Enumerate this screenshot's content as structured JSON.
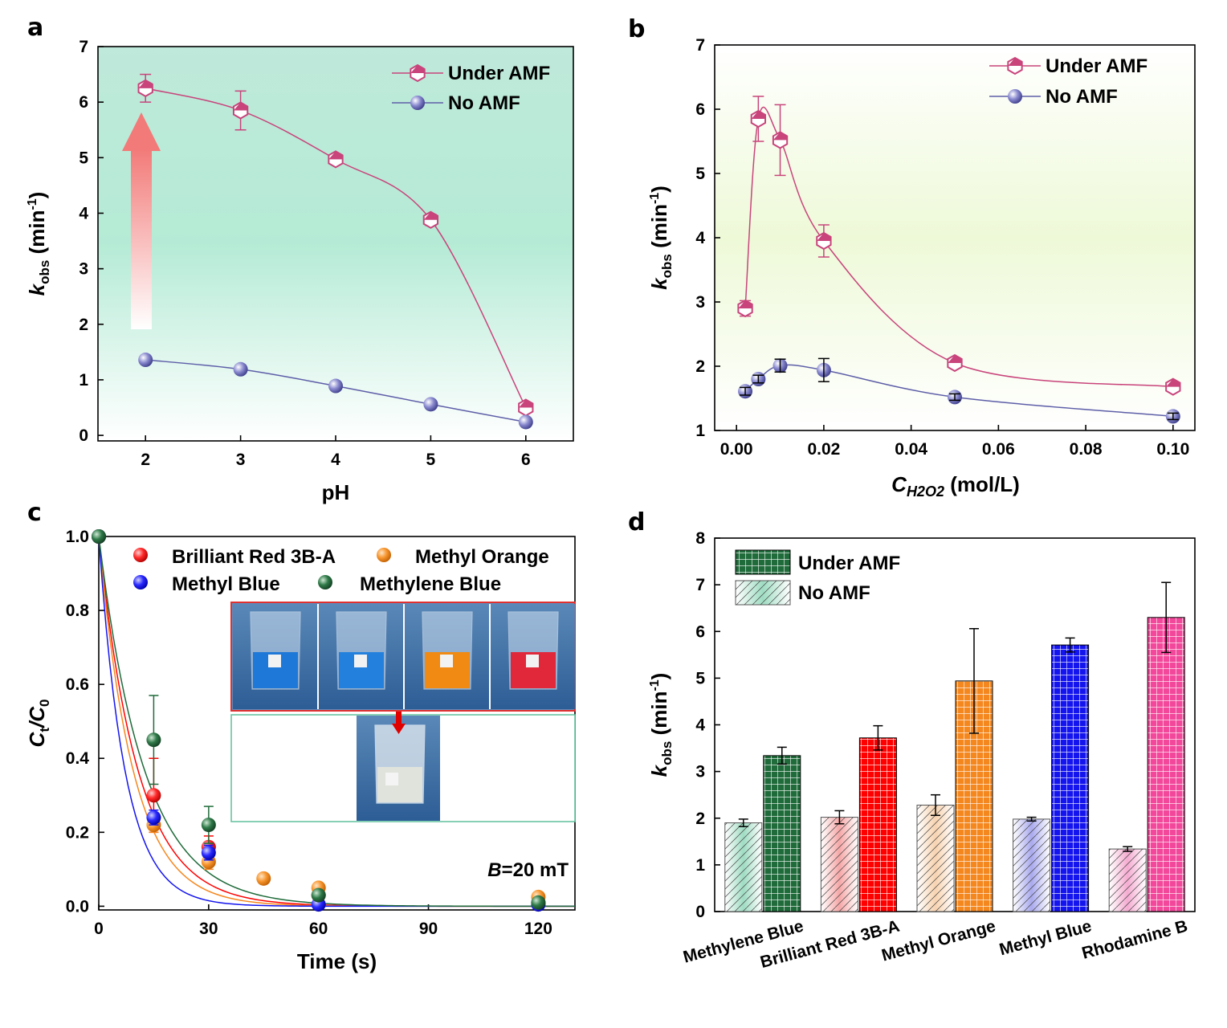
{
  "panels": {
    "a": "a",
    "b": "b",
    "c": "c",
    "d": "d"
  },
  "colors": {
    "under": "#c8447b",
    "no": "#5e5ea8",
    "red": "#ff0000",
    "orange": "#f5871f",
    "blue": "#1414ee",
    "green": "#1f6b3a",
    "pink": "#f2479a"
  },
  "chart_data": [
    {
      "id": "a",
      "type": "line",
      "xlabel": "pH",
      "ylabel": "k_obs (min^-1)",
      "ylabel_parts": {
        "k": "k",
        "sub": "obs",
        "unit": " (min",
        "sup": "-1",
        "close": ")"
      },
      "xlim": [
        1.5,
        6.5
      ],
      "ylim": [
        -0.1,
        7
      ],
      "xticks": [
        2,
        3,
        4,
        5,
        6
      ],
      "yticks": [
        0,
        1,
        2,
        3,
        4,
        5,
        6,
        7
      ],
      "legend_position": "top-right",
      "series": [
        {
          "name": "Under AMF",
          "x": [
            2,
            3,
            4,
            5,
            6
          ],
          "y": [
            6.25,
            5.85,
            4.97,
            3.88,
            0.5
          ],
          "err": [
            0.25,
            0.35,
            0.08,
            0.1,
            0.08
          ]
        },
        {
          "name": "No AMF",
          "x": [
            2,
            3,
            4,
            5,
            6
          ],
          "y": [
            1.36,
            1.19,
            0.89,
            0.56,
            0.24
          ],
          "err": [
            0.04,
            0.05,
            0.04,
            0.05,
            0.05
          ]
        }
      ]
    },
    {
      "id": "b",
      "type": "line",
      "xlabel_main": "C",
      "xlabel_sub": "H2O2",
      "xlabel_unit": " (mol/L)",
      "ylabel": "k_obs (min^-1)",
      "xlim": [
        -0.005,
        0.105
      ],
      "ylim": [
        1,
        7
      ],
      "xticks": [
        0.0,
        0.02,
        0.04,
        0.06,
        0.08,
        0.1
      ],
      "xtick_labels": [
        "0.00",
        "0.02",
        "0.04",
        "0.06",
        "0.08",
        "0.10"
      ],
      "yticks": [
        1,
        2,
        3,
        4,
        5,
        6,
        7
      ],
      "legend_position": "top-right",
      "series": [
        {
          "name": "Under AMF",
          "x": [
            0.002,
            0.005,
            0.01,
            0.02,
            0.05,
            0.1
          ],
          "y": [
            2.9,
            5.85,
            5.52,
            3.95,
            2.05,
            1.68
          ],
          "err": [
            0.12,
            0.35,
            0.55,
            0.25,
            0.08,
            0.06
          ]
        },
        {
          "name": "No AMF",
          "x": [
            0.002,
            0.005,
            0.01,
            0.02,
            0.05,
            0.1
          ],
          "y": [
            1.61,
            1.8,
            2.01,
            1.94,
            1.52,
            1.22
          ],
          "err": [
            0.06,
            0.06,
            0.1,
            0.18,
            0.05,
            0.05
          ]
        }
      ]
    },
    {
      "id": "c",
      "type": "scatter",
      "xlabel": "Time (s)",
      "ylabel_main": "C",
      "ylabel_sub_t": "t",
      "ylabel_slash": "/C",
      "ylabel_sub_0": "0",
      "xlim": [
        0,
        130
      ],
      "ylim": [
        -0.01,
        1.0
      ],
      "xticks": [
        0,
        30,
        60,
        90,
        120
      ],
      "yticks": [
        0.0,
        0.2,
        0.4,
        0.6,
        0.8,
        1.0
      ],
      "ytick_labels": [
        "0.0",
        "0.2",
        "0.4",
        "0.6",
        "0.8",
        "1.0"
      ],
      "annotation_B": "B",
      "annotation_rest": "=20 mT",
      "series": [
        {
          "name": "Brilliant Red 3B-A",
          "color": "#ff0000",
          "x": [
            0,
            15,
            30,
            60,
            120
          ],
          "y": [
            1.0,
            0.3,
            0.16,
            0.03,
            0.01
          ],
          "err": [
            0,
            0.1,
            0.03,
            0,
            0
          ],
          "k": 5.6
        },
        {
          "name": "Methyl Orange",
          "color": "#f5871f",
          "x": [
            0,
            15,
            30,
            45,
            60,
            120
          ],
          "y": [
            1.0,
            0.22,
            0.12,
            0.075,
            0.05,
            0.025
          ],
          "err": [
            0,
            0.02,
            0.02,
            0,
            0,
            0
          ],
          "k": 6.4
        },
        {
          "name": "Methyl Blue",
          "color": "#1414ee",
          "x": [
            0,
            15,
            30,
            60,
            120
          ],
          "y": [
            1.0,
            0.24,
            0.145,
            0.005,
            0.005
          ],
          "err": [
            0,
            0.02,
            0.02,
            0,
            0
          ],
          "k": 8.4
        },
        {
          "name": "Methylene Blue",
          "color": "#1f6b3a",
          "x": [
            0,
            15,
            30,
            60,
            120
          ],
          "y": [
            1.0,
            0.45,
            0.22,
            0.03,
            0.01
          ],
          "err": [
            0,
            0.12,
            0.05,
            0,
            0
          ],
          "k": 4.8
        }
      ]
    },
    {
      "id": "d",
      "type": "bar",
      "ylabel": "k_obs (min^-1)",
      "ylim": [
        0,
        8
      ],
      "yticks": [
        0,
        1,
        2,
        3,
        4,
        5,
        6,
        7,
        8
      ],
      "categories": [
        "Methylene Blue",
        "Brilliant Red 3B-A",
        "Methyl Orange",
        "Methyl Blue",
        "Rhodamine B"
      ],
      "category_colors": [
        "#1f6b3a",
        "#ff0000",
        "#f5871f",
        "#1414ee",
        "#f2479a"
      ],
      "legend_position": "top-left",
      "series": [
        {
          "name": "No AMF",
          "values": [
            1.9,
            2.02,
            2.28,
            1.98,
            1.34
          ],
          "err": [
            0.08,
            0.14,
            0.22,
            0.04,
            0.05
          ]
        },
        {
          "name": "Under AMF",
          "values": [
            3.34,
            3.72,
            4.94,
            5.71,
            6.3
          ],
          "err": [
            0.18,
            0.26,
            1.12,
            0.15,
            0.75
          ]
        }
      ]
    }
  ]
}
